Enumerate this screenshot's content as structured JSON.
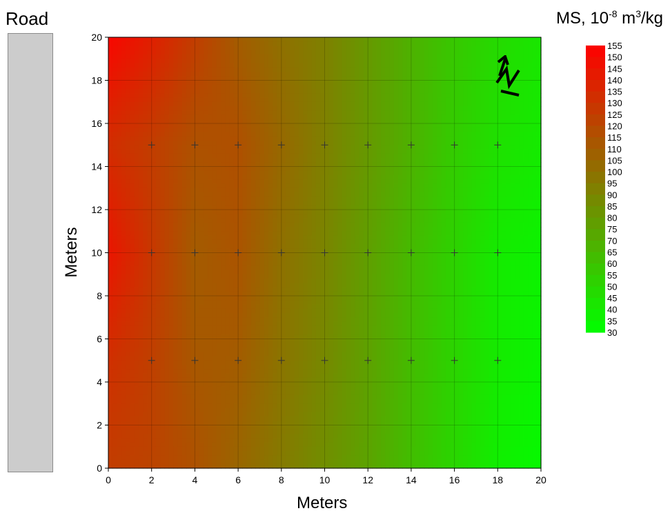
{
  "road_label": "Road",
  "colorbar_title": {
    "prefix": "MS, 10",
    "exp1": "-8",
    "mid": " m",
    "exp2": "3",
    "suffix": "/kg"
  },
  "chart_data": {
    "type": "heatmap",
    "subtype": "filled-contour",
    "xlabel": "Meters",
    "ylabel": "Meters",
    "xlim": [
      0,
      20
    ],
    "ylim": [
      0,
      20
    ],
    "x_ticks": [
      0,
      2,
      4,
      6,
      8,
      10,
      12,
      14,
      16,
      18,
      20
    ],
    "y_ticks": [
      0,
      2,
      4,
      6,
      8,
      10,
      12,
      14,
      16,
      18,
      20
    ],
    "grid": true,
    "colorscale": {
      "low": "#00ff00",
      "high": "#ff0000"
    },
    "color_range": [
      30,
      155
    ],
    "contour_levels": [
      30,
      35,
      40,
      45,
      50,
      55,
      60,
      65,
      70,
      75,
      80,
      85,
      90,
      95,
      100,
      105,
      110,
      115,
      120,
      125,
      130,
      135,
      140,
      145,
      150,
      155
    ],
    "sample_points": {
      "x": [
        2,
        4,
        6,
        8,
        10,
        12,
        14,
        16,
        18
      ],
      "y": [
        5,
        10,
        15
      ]
    },
    "grid_x": [
      0,
      2,
      4,
      6,
      8,
      10,
      12,
      14,
      16,
      18,
      20
    ],
    "grid_y": [
      0,
      5,
      10,
      15,
      20
    ],
    "z": [
      [
        125,
        122,
        115,
        105,
        95,
        85,
        75,
        62,
        50,
        38,
        33
      ],
      [
        132,
        124,
        112,
        110,
        98,
        88,
        76,
        63,
        51,
        40,
        35
      ],
      [
        145,
        128,
        110,
        114,
        100,
        90,
        77,
        64,
        52,
        40,
        36
      ],
      [
        133,
        125,
        115,
        116,
        104,
        92,
        80,
        68,
        55,
        45,
        40
      ],
      [
        152,
        140,
        125,
        110,
        100,
        92,
        80,
        68,
        57,
        48,
        42
      ]
    ],
    "legend": "right"
  },
  "north_icon": "north-arrow-icon"
}
